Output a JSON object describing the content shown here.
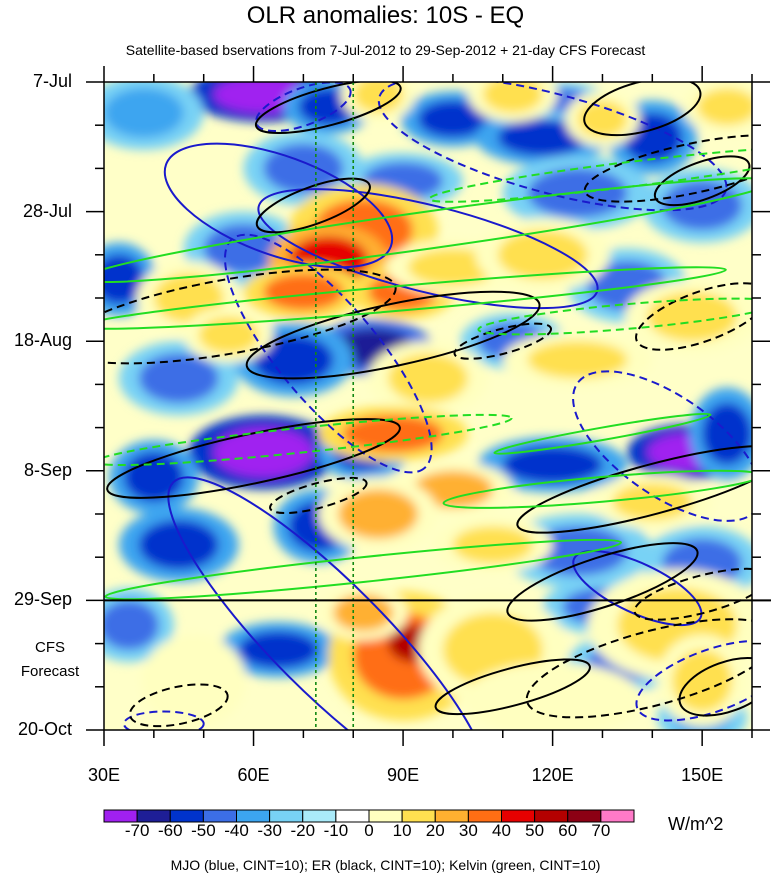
{
  "chart_data": {
    "type": "heatmap",
    "title": "OLR anomalies: 10S - EQ",
    "subtitle": "Satellite-based bservations from 7-Jul-2012 to 29-Sep-2012 + 21-day CFS Forecast",
    "x_ticks": [
      {
        "label": "30E",
        "value": 30
      },
      {
        "label": "60E",
        "value": 60
      },
      {
        "label": "90E",
        "value": 90
      },
      {
        "label": "120E",
        "value": 120
      },
      {
        "label": "150E",
        "value": 150
      }
    ],
    "xlim": [
      30,
      160
    ],
    "y_ticks": [
      {
        "label": "7-Jul",
        "day": 0
      },
      {
        "label": "28-Jul",
        "day": 21
      },
      {
        "label": "18-Aug",
        "day": 42
      },
      {
        "label": "8-Sep",
        "day": 63
      },
      {
        "label": "29-Sep",
        "day": 84
      },
      {
        "label": "20-Oct",
        "day": 105
      }
    ],
    "ylim_days": [
      0,
      105
    ],
    "forecast_start_day": 84,
    "forecast_label_line1": "CFS",
    "forecast_label_line2": "Forecast",
    "reference_lines_lon": [
      72.5,
      80
    ],
    "colorbar": {
      "levels": [
        "-70",
        "-60",
        "-50",
        "-40",
        "-30",
        "-20",
        "-10",
        "0",
        "10",
        "20",
        "30",
        "40",
        "50",
        "60",
        "70"
      ],
      "colors": [
        "#a020f0",
        "#1e1e96",
        "#0033cc",
        "#3c6ee6",
        "#3ca5f0",
        "#78d2f5",
        "#aaebfa",
        "#ffffff",
        "#ffffc0",
        "#ffe050",
        "#ffb030",
        "#ff6e14",
        "#e60000",
        "#b40000",
        "#8c0014",
        "#ff7ac8"
      ],
      "units": "W/m^2"
    },
    "blobs": [
      {
        "lon": 62,
        "day": 2,
        "rlon": 10,
        "rday": 3,
        "v": -60
      },
      {
        "lon": 75,
        "day": 4,
        "rlon": 6,
        "rday": 3,
        "v": -40
      },
      {
        "lon": 100,
        "day": 6,
        "rlon": 7,
        "rday": 3,
        "v": -40
      },
      {
        "lon": 118,
        "day": 9,
        "rlon": 9,
        "rday": 3,
        "v": -40
      },
      {
        "lon": 140,
        "day": 9,
        "rlon": 6,
        "rday": 4,
        "v": -40
      },
      {
        "lon": 122,
        "day": 3,
        "rlon": 6,
        "rday": 2,
        "v": -30
      },
      {
        "lon": 38,
        "day": 5,
        "rlon": 8,
        "rday": 4,
        "v": -20
      },
      {
        "lon": 70,
        "day": 14,
        "rlon": 8,
        "rday": 4,
        "v": -30
      },
      {
        "lon": 90,
        "day": 16,
        "rlon": 8,
        "rday": 3,
        "v": -30
      },
      {
        "lon": 125,
        "day": 18,
        "rlon": 10,
        "rday": 4,
        "v": -30
      },
      {
        "lon": 150,
        "day": 20,
        "rlon": 8,
        "rday": 4,
        "v": -30
      },
      {
        "lon": 58,
        "day": 27,
        "rlon": 8,
        "rday": 4,
        "v": -30
      },
      {
        "lon": 33,
        "day": 32,
        "rlon": 5,
        "rday": 4,
        "v": -40
      },
      {
        "lon": 135,
        "day": 33,
        "rlon": 8,
        "rday": 4,
        "v": -30
      },
      {
        "lon": 84,
        "day": 43,
        "rlon": 8,
        "rday": 3,
        "v": -50
      },
      {
        "lon": 68,
        "day": 45,
        "rlon": 8,
        "rday": 4,
        "v": -40
      },
      {
        "lon": 45,
        "day": 48,
        "rlon": 8,
        "rday": 4,
        "v": -30
      },
      {
        "lon": 112,
        "day": 42,
        "rlon": 7,
        "rday": 3,
        "v": -30
      },
      {
        "lon": 62,
        "day": 60,
        "rlon": 10,
        "rday": 4,
        "v": -60
      },
      {
        "lon": 40,
        "day": 64,
        "rlon": 6,
        "rday": 4,
        "v": -40
      },
      {
        "lon": 82,
        "day": 60,
        "rlon": 6,
        "rday": 3,
        "v": -40
      },
      {
        "lon": 120,
        "day": 62,
        "rlon": 10,
        "rday": 3,
        "v": -40
      },
      {
        "lon": 147,
        "day": 60,
        "rlon": 8,
        "rday": 3,
        "v": -60
      },
      {
        "lon": 155,
        "day": 57,
        "rlon": 5,
        "rday": 5,
        "v": -40
      },
      {
        "lon": 45,
        "day": 75,
        "rlon": 8,
        "rday": 4,
        "v": -40
      },
      {
        "lon": 73,
        "day": 72,
        "rlon": 6,
        "rday": 4,
        "v": -40
      },
      {
        "lon": 125,
        "day": 76,
        "rlon": 10,
        "rday": 4,
        "v": -30
      },
      {
        "lon": 150,
        "day": 78,
        "rlon": 8,
        "rday": 4,
        "v": -30
      },
      {
        "lon": 35,
        "day": 88,
        "rlon": 6,
        "rday": 4,
        "v": -30
      },
      {
        "lon": 65,
        "day": 92,
        "rlon": 8,
        "rday": 3,
        "v": -40
      },
      {
        "lon": 130,
        "day": 85,
        "rlon": 8,
        "rday": 3,
        "v": -30
      },
      {
        "lon": 135,
        "day": 94,
        "rlon": 8,
        "rday": 3,
        "v": -30
      },
      {
        "lon": 150,
        "day": 103,
        "rlon": 6,
        "rday": 3,
        "v": -20
      },
      {
        "lon": 85,
        "day": 2,
        "rlon": 5,
        "rday": 3,
        "v": 20
      },
      {
        "lon": 112,
        "day": 2,
        "rlon": 6,
        "rday": 3,
        "v": 20
      },
      {
        "lon": 130,
        "day": 6,
        "rlon": 5,
        "rday": 3,
        "v": 20
      },
      {
        "lon": 155,
        "day": 4,
        "rlon": 6,
        "rday": 3,
        "v": 20
      },
      {
        "lon": 82,
        "day": 24,
        "rlon": 10,
        "rday": 5,
        "v": 40
      },
      {
        "lon": 75,
        "day": 29,
        "rlon": 8,
        "rday": 4,
        "v": 50
      },
      {
        "lon": 70,
        "day": 34,
        "rlon": 8,
        "rday": 3,
        "v": 40
      },
      {
        "lon": 90,
        "day": 34,
        "rlon": 7,
        "rday": 3,
        "v": 40
      },
      {
        "lon": 100,
        "day": 30,
        "rlon": 9,
        "rday": 3,
        "v": 20
      },
      {
        "lon": 118,
        "day": 28,
        "rlon": 9,
        "rday": 4,
        "v": 20
      },
      {
        "lon": 47,
        "day": 35,
        "rlon": 7,
        "rday": 4,
        "v": 20
      },
      {
        "lon": 148,
        "day": 38,
        "rlon": 9,
        "rday": 4,
        "v": 20
      },
      {
        "lon": 125,
        "day": 45,
        "rlon": 10,
        "rday": 3,
        "v": 20
      },
      {
        "lon": 55,
        "day": 41,
        "rlon": 6,
        "rday": 3,
        "v": 20
      },
      {
        "lon": 95,
        "day": 48,
        "rlon": 8,
        "rday": 4,
        "v": 20
      },
      {
        "lon": 88,
        "day": 57,
        "rlon": 10,
        "rday": 3,
        "v": 40
      },
      {
        "lon": 100,
        "day": 66,
        "rlon": 8,
        "rday": 3,
        "v": 30
      },
      {
        "lon": 85,
        "day": 70,
        "rlon": 8,
        "rday": 4,
        "v": 30
      },
      {
        "lon": 140,
        "day": 68,
        "rlon": 8,
        "rday": 3,
        "v": 20
      },
      {
        "lon": 108,
        "day": 75,
        "rlon": 8,
        "rday": 3,
        "v": 20
      },
      {
        "lon": 90,
        "day": 93,
        "rlon": 10,
        "rday": 7,
        "v": 40
      },
      {
        "lon": 92,
        "day": 91,
        "rlon": 5,
        "rday": 3,
        "v": 60
      },
      {
        "lon": 82,
        "day": 86,
        "rlon": 6,
        "rday": 3,
        "v": 30
      },
      {
        "lon": 108,
        "day": 92,
        "rlon": 10,
        "rday": 6,
        "v": 20
      },
      {
        "lon": 145,
        "day": 88,
        "rlon": 12,
        "rday": 6,
        "v": 20
      },
      {
        "lon": 150,
        "day": 97,
        "rlon": 6,
        "rday": 5,
        "v": 20
      },
      {
        "lon": 120,
        "day": 100,
        "rlon": 12,
        "rday": 4,
        "v": 10
      },
      {
        "lon": 48,
        "day": 97,
        "rlon": 7,
        "rday": 5,
        "v": 10
      }
    ],
    "mjo_contours": [
      {
        "lon": 70,
        "day": 4,
        "rlon": 10,
        "rday": 3,
        "rot": -20,
        "sign": "neg"
      },
      {
        "lon": 120,
        "day": 10,
        "rlon": 36,
        "rday": 8,
        "rot": 15,
        "sign": "neg"
      },
      {
        "lon": 65,
        "day": 20,
        "rlon": 24,
        "rday": 8,
        "rot": 20,
        "sign": "pos"
      },
      {
        "lon": 95,
        "day": 27,
        "rlon": 35,
        "rday": 7,
        "rot": 14,
        "sign": "pos"
      },
      {
        "lon": 75,
        "day": 44,
        "rlon": 30,
        "rday": 8,
        "rot": 50,
        "sign": "neg"
      },
      {
        "lon": 143,
        "day": 59,
        "rlon": 22,
        "rday": 8,
        "rot": 35,
        "sign": "neg"
      },
      {
        "lon": 75,
        "day": 90,
        "rlon": 44,
        "rday": 9,
        "rot": 45,
        "sign": "pos"
      },
      {
        "lon": 137,
        "day": 82,
        "rlon": 14,
        "rday": 4,
        "rot": 25,
        "sign": "pos"
      },
      {
        "lon": 152,
        "day": 97,
        "rlon": 16,
        "rday": 5,
        "rot": -20,
        "sign": "neg"
      },
      {
        "lon": 42,
        "day": 104,
        "rlon": 8,
        "rday": 2,
        "rot": 0,
        "sign": "neg"
      }
    ],
    "er_contours": [
      {
        "lon": 75,
        "day": 4,
        "rlon": 15,
        "rday": 3,
        "rot": -15,
        "sign": "pos"
      },
      {
        "lon": 138,
        "day": 4,
        "rlon": 12,
        "rday": 4,
        "rot": -15,
        "sign": "pos"
      },
      {
        "lon": 148,
        "day": 14,
        "rlon": 22,
        "rday": 4,
        "rot": -12,
        "sign": "neg"
      },
      {
        "lon": 72,
        "day": 20,
        "rlon": 12,
        "rday": 3,
        "rot": -20,
        "sign": "pos"
      },
      {
        "lon": 150,
        "day": 16,
        "rlon": 10,
        "rday": 3,
        "rot": -20,
        "sign": "pos"
      },
      {
        "lon": 55,
        "day": 38,
        "rlon": 34,
        "rday": 6,
        "rot": -10,
        "sign": "neg"
      },
      {
        "lon": 88,
        "day": 41,
        "rlon": 30,
        "rday": 5,
        "rot": -12,
        "sign": "pos"
      },
      {
        "lon": 150,
        "day": 38,
        "rlon": 14,
        "rday": 4,
        "rot": -20,
        "sign": "neg"
      },
      {
        "lon": 110,
        "day": 42,
        "rlon": 10,
        "rday": 2,
        "rot": -15,
        "sign": "neg"
      },
      {
        "lon": 60,
        "day": 61,
        "rlon": 30,
        "rday": 4,
        "rot": -12,
        "sign": "pos"
      },
      {
        "lon": 140,
        "day": 66,
        "rlon": 28,
        "rday": 4,
        "rot": -15,
        "sign": "pos"
      },
      {
        "lon": 73,
        "day": 67,
        "rlon": 10,
        "rday": 2,
        "rot": -15,
        "sign": "neg"
      },
      {
        "lon": 130,
        "day": 81,
        "rlon": 20,
        "rday": 4,
        "rot": -18,
        "sign": "pos"
      },
      {
        "lon": 150,
        "day": 83,
        "rlon": 14,
        "rday": 3,
        "rot": -15,
        "sign": "neg"
      },
      {
        "lon": 112,
        "day": 98,
        "rlon": 16,
        "rday": 3,
        "rot": -15,
        "sign": "pos"
      },
      {
        "lon": 140,
        "day": 95,
        "rlon": 26,
        "rday": 6,
        "rot": -15,
        "sign": "neg"
      },
      {
        "lon": 155,
        "day": 98,
        "rlon": 10,
        "rday": 4,
        "rot": -20,
        "sign": "pos"
      },
      {
        "lon": 45,
        "day": 101,
        "rlon": 10,
        "rday": 3,
        "rot": -12,
        "sign": "neg"
      }
    ],
    "kelvin_contours": [
      {
        "lon": 95,
        "day": 24,
        "rlon": 70,
        "rday": 3,
        "rot": -8,
        "sign": "pos"
      },
      {
        "lon": 135,
        "day": 15,
        "rlon": 40,
        "rday": 2,
        "rot": -7,
        "sign": "neg"
      },
      {
        "lon": 90,
        "day": 35,
        "rlon": 65,
        "rday": 2,
        "rot": -5,
        "sign": "pos"
      },
      {
        "lon": 135,
        "day": 38,
        "rlon": 30,
        "rday": 2,
        "rot": -5,
        "sign": "neg"
      },
      {
        "lon": 70,
        "day": 58,
        "rlon": 42,
        "rday": 2,
        "rot": -6,
        "sign": "neg"
      },
      {
        "lon": 130,
        "day": 66,
        "rlon": 32,
        "rday": 2,
        "rot": -5,
        "sign": "pos"
      },
      {
        "lon": 82,
        "day": 79,
        "rlon": 52,
        "rday": 2,
        "rot": -6,
        "sign": "pos"
      },
      {
        "lon": 130,
        "day": 57,
        "rlon": 22,
        "rday": 1,
        "rot": -10,
        "sign": "pos"
      }
    ]
  },
  "footnote": "MJO (blue, CINT=10); ER (black, CINT=10); Kelvin (green, CINT=10)"
}
